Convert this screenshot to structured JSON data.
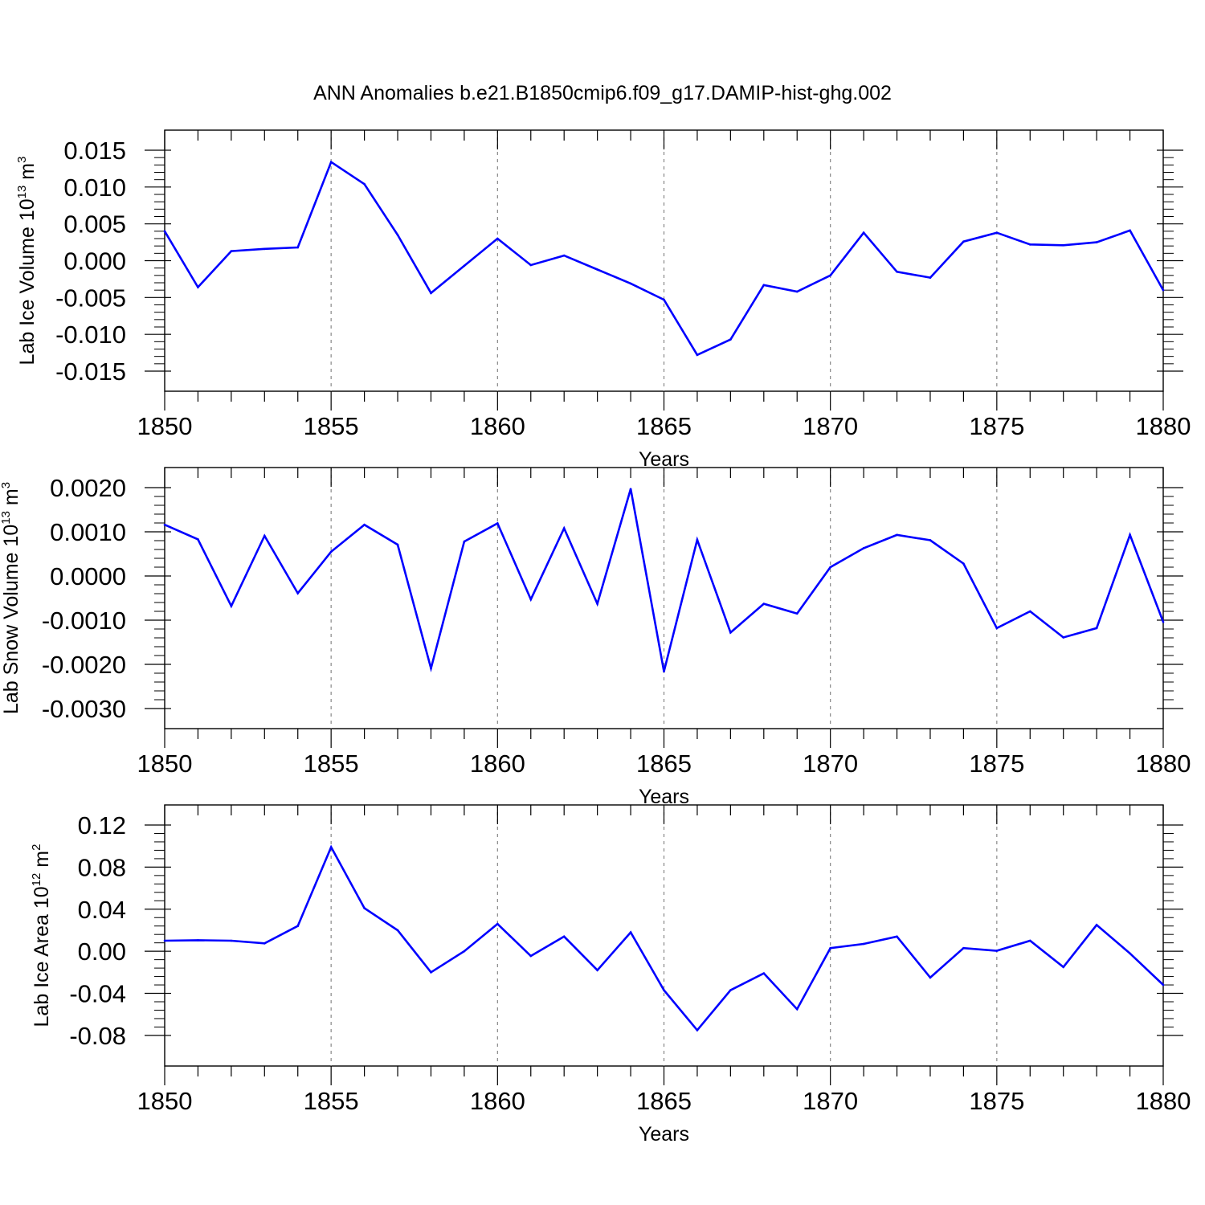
{
  "title": "ANN Anomalies b.e21.B1850cmip6.f09_g17.DAMIP-hist-ghg.002",
  "colors": {
    "series": "#0000ff",
    "axis": "#000000",
    "grid": "#888888"
  },
  "chart_data": [
    {
      "type": "line",
      "ylabel_main": "Lab Ice Volume 10",
      "ylabel_exp": "13",
      "ylabel_unit": " m",
      "ylabel_unit_exp": "3",
      "xlabel": "Years",
      "xlim": [
        1850,
        1880
      ],
      "ylim": [
        -0.015,
        0.015
      ],
      "xticks": [
        "1850",
        "1855",
        "1860",
        "1865",
        "1870",
        "1875",
        "1880"
      ],
      "yticks": [
        "0.015",
        "0.010",
        "0.005",
        "0.000",
        "-0.005",
        "-0.010",
        "-0.015"
      ],
      "ytick_values": [
        0.015,
        0.01,
        0.005,
        0.0,
        -0.005,
        -0.01,
        -0.015
      ],
      "x": [
        1850,
        1851,
        1852,
        1853,
        1854,
        1855,
        1856,
        1857,
        1858,
        1859,
        1860,
        1861,
        1862,
        1863,
        1864,
        1865,
        1866,
        1867,
        1868,
        1869,
        1870,
        1871,
        1872,
        1873,
        1874,
        1875,
        1876,
        1877,
        1878,
        1879,
        1880
      ],
      "values": [
        0.004,
        -0.0036,
        0.0013,
        0.0016,
        0.0018,
        0.0134,
        0.0104,
        0.0035,
        -0.0044,
        -0.0007,
        0.003,
        -0.0006,
        0.0007,
        -0.0012,
        -0.0031,
        -0.0053,
        -0.0128,
        -0.0107,
        -0.0033,
        -0.0042,
        -0.002,
        0.0038,
        -0.0015,
        -0.0023,
        0.0026,
        0.0038,
        0.0022,
        0.0021,
        0.0025,
        0.0041,
        -0.004
      ]
    },
    {
      "type": "line",
      "ylabel_main": "Lab Snow Volume 10",
      "ylabel_exp": "13",
      "ylabel_unit": " m",
      "ylabel_unit_exp": "3",
      "xlabel": "Years",
      "xlim": [
        1850,
        1880
      ],
      "ylim": [
        -0.003,
        0.002
      ],
      "xticks": [
        "1850",
        "1855",
        "1860",
        "1865",
        "1870",
        "1875",
        "1880"
      ],
      "yticks": [
        "0.0020",
        "0.0010",
        "0.0000",
        "-0.0010",
        "-0.0020",
        "-0.0030"
      ],
      "ytick_values": [
        0.002,
        0.001,
        0.0,
        -0.001,
        -0.002,
        -0.003
      ],
      "x": [
        1850,
        1851,
        1852,
        1853,
        1854,
        1855,
        1856,
        1857,
        1858,
        1859,
        1860,
        1861,
        1862,
        1863,
        1864,
        1865,
        1866,
        1867,
        1868,
        1869,
        1870,
        1871,
        1872,
        1873,
        1874,
        1875,
        1876,
        1877,
        1878,
        1879,
        1880
      ],
      "values": [
        0.00116,
        0.00083,
        -0.00068,
        0.00091,
        -0.00039,
        0.00055,
        0.00116,
        0.00071,
        -0.00209,
        0.00078,
        0.00119,
        -0.00053,
        0.00108,
        -0.00063,
        0.00197,
        -0.00216,
        0.00082,
        -0.00128,
        -0.00063,
        -0.00085,
        0.0002,
        0.00063,
        0.00093,
        0.00081,
        0.00028,
        -0.00118,
        -0.0008,
        -0.00139,
        -0.00118,
        0.00093,
        -0.00104
      ]
    },
    {
      "type": "line",
      "ylabel_main": "Lab Ice Area 10",
      "ylabel_exp": "12",
      "ylabel_unit": " m",
      "ylabel_unit_exp": "2",
      "xlabel": "Years",
      "xlim": [
        1850,
        1880
      ],
      "ylim": [
        -0.09,
        0.12
      ],
      "xticks": [
        "1850",
        "1855",
        "1860",
        "1865",
        "1870",
        "1875",
        "1880"
      ],
      "yticks": [
        "0.12",
        "0.08",
        "0.04",
        "0.00",
        "-0.04",
        "-0.08"
      ],
      "ytick_values": [
        0.12,
        0.08,
        0.04,
        0.0,
        -0.04,
        -0.08
      ],
      "x": [
        1850,
        1851,
        1852,
        1853,
        1854,
        1855,
        1856,
        1857,
        1858,
        1859,
        1860,
        1861,
        1862,
        1863,
        1864,
        1865,
        1866,
        1867,
        1868,
        1869,
        1870,
        1871,
        1872,
        1873,
        1874,
        1875,
        1876,
        1877,
        1878,
        1879,
        1880
      ],
      "values": [
        0.01,
        0.0105,
        0.01,
        0.0075,
        0.024,
        0.099,
        0.041,
        0.02,
        -0.02,
        0.0,
        0.026,
        -0.0045,
        0.014,
        -0.018,
        0.018,
        -0.037,
        -0.075,
        -0.037,
        -0.021,
        -0.055,
        0.003,
        0.007,
        0.014,
        -0.025,
        0.003,
        0.0005,
        0.01,
        -0.015,
        0.025,
        -0.002,
        -0.032
      ]
    }
  ]
}
